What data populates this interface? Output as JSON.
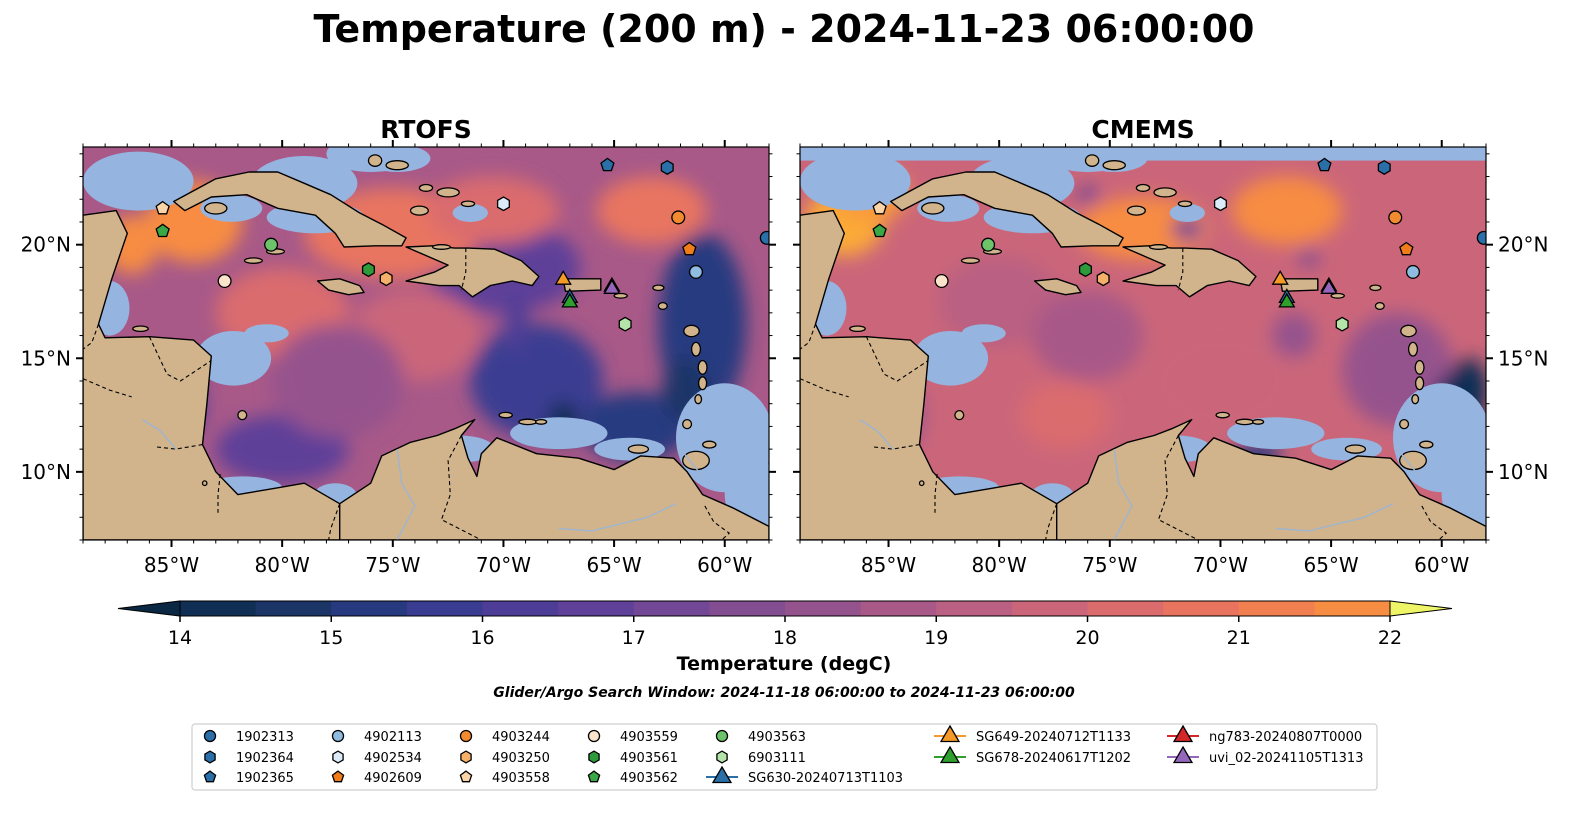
{
  "chart_data": {
    "type": "contour-map",
    "title": "Temperature (200 m) - 2024-11-23 06:00:00",
    "panels": [
      {
        "title": "RTOFS"
      },
      {
        "title": "CMEMS"
      }
    ],
    "lon_range": [
      -89,
      -58
    ],
    "lat_range": [
      7,
      24.3
    ],
    "x_ticks": [
      -85,
      -80,
      -75,
      -70,
      -65,
      -60
    ],
    "x_tick_labels": [
      "85°W",
      "80°W",
      "75°W",
      "70°W",
      "65°W",
      "60°W"
    ],
    "y_ticks": [
      10,
      15,
      20
    ],
    "y_tick_labels": [
      "10°N",
      "15°N",
      "20°N"
    ],
    "colorbar": {
      "label": "Temperature (degC)",
      "min": 14,
      "max": 22,
      "step": 0.5,
      "ticks": [
        14,
        15,
        16,
        17,
        18,
        19,
        20,
        21,
        22
      ],
      "extend": "both",
      "colors": [
        "#0a2744",
        "#112f55",
        "#1b3567",
        "#273a80",
        "#3a3c92",
        "#4d3d97",
        "#5f4199",
        "#714796",
        "#834d92",
        "#95538d",
        "#a85988",
        "#ba6082",
        "#cb667a",
        "#da6c6e",
        "#e87460",
        "#f27f50",
        "#f78c43",
        "#f99a3a",
        "#fbaa37",
        "#fcbc3d",
        "#fbd14a",
        "#f5e558",
        "#eef567"
      ]
    },
    "subtitle": "Glider/Argo Search Window: 2024-11-18 06:00:00 to 2024-11-23 06:00:00",
    "legend": [
      {
        "label": "1902313",
        "marker": "circle",
        "color": "#2a6fa8"
      },
      {
        "label": "1902364",
        "marker": "hexagon",
        "color": "#2a6fa8"
      },
      {
        "label": "1902365",
        "marker": "pentagon",
        "color": "#2a6fa8"
      },
      {
        "label": "4902113",
        "marker": "circle",
        "color": "#8fbde2"
      },
      {
        "label": "4902534",
        "marker": "hexagon",
        "color": "#dcebf8"
      },
      {
        "label": "4902609",
        "marker": "pentagon",
        "color": "#f07c1a"
      },
      {
        "label": "4903244",
        "marker": "circle",
        "color": "#f28a30"
      },
      {
        "label": "4903250",
        "marker": "hexagon",
        "color": "#f5b06a"
      },
      {
        "label": "4903558",
        "marker": "pentagon",
        "color": "#fbd5a8"
      },
      {
        "label": "4903559",
        "marker": "circle",
        "color": "#fce3cc"
      },
      {
        "label": "4903561",
        "marker": "hexagon",
        "color": "#2e9a3a"
      },
      {
        "label": "4903562",
        "marker": "pentagon",
        "color": "#3aa845"
      },
      {
        "label": "4903563",
        "marker": "circle",
        "color": "#6cc36a"
      },
      {
        "label": "6903111",
        "marker": "hexagon",
        "color": "#b5e4a8"
      },
      {
        "label": "SG630-20240713T1103",
        "marker": "triangle",
        "color": "#2a6fa8"
      },
      {
        "label": "SG649-20240712T1133",
        "marker": "triangle",
        "color": "#f59a26"
      },
      {
        "label": "SG678-20240617T1202",
        "marker": "triangle",
        "color": "#2ea02c"
      },
      {
        "label": "ng783-20240807T0000",
        "marker": "triangle",
        "color": "#d62728"
      },
      {
        "label": "uvi_02-20241105T1313",
        "marker": "triangle",
        "color": "#9467bd"
      }
    ],
    "points": [
      {
        "id": "1902313",
        "lon": -58.1,
        "lat": 20.3
      },
      {
        "id": "1902364",
        "lon": -62.6,
        "lat": 23.4
      },
      {
        "id": "1902365",
        "lon": -65.3,
        "lat": 23.5
      },
      {
        "id": "4902113",
        "lon": -61.3,
        "lat": 18.8
      },
      {
        "id": "4902534",
        "lon": -70.0,
        "lat": 21.8
      },
      {
        "id": "4902609",
        "lon": -61.6,
        "lat": 19.8
      },
      {
        "id": "4903244",
        "lon": -62.1,
        "lat": 21.2
      },
      {
        "id": "4903250",
        "lon": -75.3,
        "lat": 18.5
      },
      {
        "id": "4903558",
        "lon": -85.4,
        "lat": 21.6
      },
      {
        "id": "4903559",
        "lon": -82.6,
        "lat": 18.4
      },
      {
        "id": "4903561",
        "lon": -76.1,
        "lat": 18.9
      },
      {
        "id": "4903562",
        "lon": -85.4,
        "lat": 20.6
      },
      {
        "id": "4903563",
        "lon": -80.5,
        "lat": 20.0
      },
      {
        "id": "6903111",
        "lon": -64.5,
        "lat": 16.5
      },
      {
        "id": "SG630-20240713T1103",
        "lon": -67.0,
        "lat": 17.7
      },
      {
        "id": "SG649-20240712T1133",
        "lon": -67.3,
        "lat": 18.5
      },
      {
        "id": "SG678-20240617T1202",
        "lon": -67.0,
        "lat": 17.5
      },
      {
        "id": "ng783-20240807T0000",
        "lon": -65.1,
        "lat": 18.2
      },
      {
        "id": "uvi_02-20241105T1313",
        "lon": -65.1,
        "lat": 18.1
      }
    ]
  }
}
